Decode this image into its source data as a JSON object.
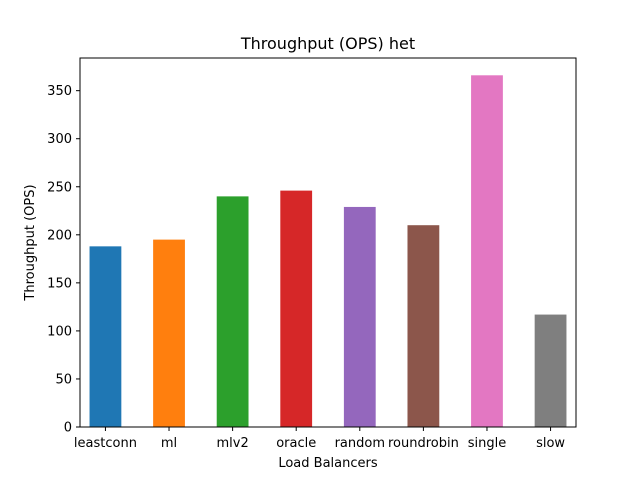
{
  "chart_data": {
    "type": "bar",
    "title": "Throughput (OPS) het",
    "xlabel": "Load Balancers",
    "ylabel": "Throughput (OPS)",
    "categories": [
      "leastconn",
      "ml",
      "mlv2",
      "oracle",
      "random",
      "roundrobin",
      "single",
      "slow"
    ],
    "values": [
      188,
      195,
      240,
      246,
      229,
      210,
      366,
      117
    ],
    "colors": [
      "#1f77b4",
      "#ff7f0e",
      "#2ca02c",
      "#d62728",
      "#9467bd",
      "#8c564b",
      "#e377c2",
      "#7f7f7f"
    ],
    "yticks": [
      0,
      50,
      100,
      150,
      200,
      250,
      300,
      350
    ],
    "ylim": [
      0,
      384
    ],
    "grid": false
  }
}
